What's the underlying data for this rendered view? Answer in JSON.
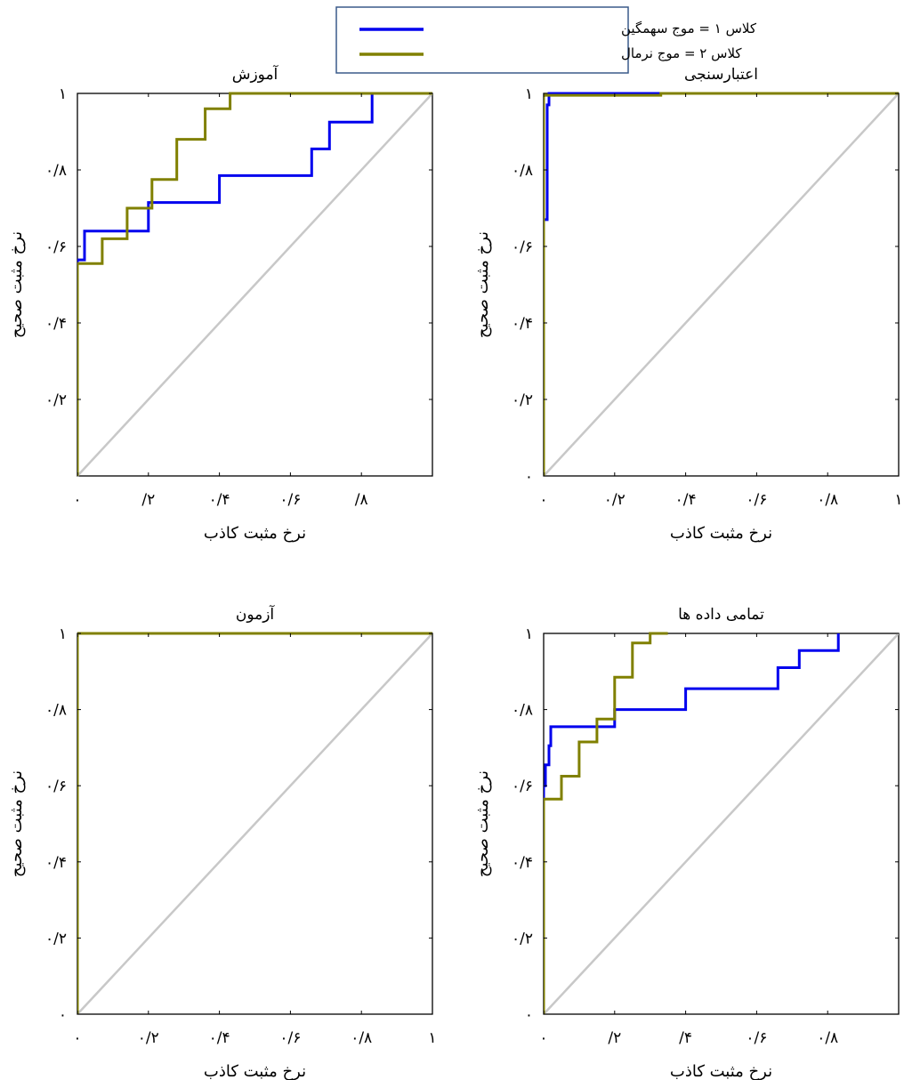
{
  "legend": {
    "entries": [
      {
        "label": "کلاس ۱ = موج سهمگین",
        "color": "#0000ee"
      },
      {
        "label": "کلاس ۲ = موج نرمال",
        "color": "#808000"
      }
    ]
  },
  "chart_data": [
    {
      "type": "line",
      "title": "آموزش",
      "xlabel": "نرخ مثبت کاذب",
      "ylabel": "نرخ مثبت صحیح",
      "xlim": [
        0,
        1
      ],
      "ylim": [
        0,
        1
      ],
      "xtick_values": [
        0,
        0.2,
        0.4,
        0.6,
        0.8
      ],
      "xtick_labels": [
        "۰",
        "/۲",
        "۰/۴",
        "۰/۶",
        "/۸"
      ],
      "ytick_values": [
        0.2,
        0.4,
        0.6,
        0.8,
        1
      ],
      "ytick_labels": [
        "۰/۲",
        "۰/۴",
        "۰/۶",
        "۰/۸",
        "۱"
      ],
      "grid": false,
      "series": [
        {
          "color": "#0000ee",
          "x": [
            0,
            0,
            0.02,
            0.02,
            0.2,
            0.2,
            0.4,
            0.4,
            0.66,
            0.66,
            0.71,
            0.71,
            0.83,
            0.83,
            1
          ],
          "y": [
            0,
            0.565,
            0.565,
            0.64,
            0.64,
            0.715,
            0.715,
            0.785,
            0.785,
            0.855,
            0.855,
            0.925,
            0.925,
            1,
            1
          ]
        },
        {
          "color": "#808000",
          "x": [
            0,
            0,
            0.07,
            0.07,
            0.14,
            0.14,
            0.21,
            0.21,
            0.28,
            0.28,
            0.36,
            0.36,
            0.43,
            0.43,
            1
          ],
          "y": [
            0,
            0.555,
            0.555,
            0.62,
            0.62,
            0.7,
            0.7,
            0.775,
            0.775,
            0.88,
            0.88,
            0.96,
            0.96,
            1,
            1
          ]
        },
        {
          "color": "#c8c8c8",
          "x": [
            0,
            1
          ],
          "y": [
            0,
            1
          ]
        }
      ]
    },
    {
      "type": "line",
      "title": "اعتبارسنجی",
      "xlabel": "نرخ مثبت کاذب",
      "ylabel": "نرخ مثبت صحیح",
      "xlim": [
        0,
        1
      ],
      "ylim": [
        0,
        1
      ],
      "xtick_values": [
        0,
        0.2,
        0.4,
        0.6,
        0.8,
        1
      ],
      "xtick_labels": [
        "۰",
        "۰/۲",
        "۰/۴",
        "۰/۶",
        "۰/۸",
        "۱"
      ],
      "ytick_values": [
        0,
        0.2,
        0.4,
        0.6,
        0.8,
        1
      ],
      "ytick_labels": [
        "۰",
        "۰/۲",
        "۰/۴",
        "۰/۶",
        "۰/۸",
        "۱"
      ],
      "grid": false,
      "series": [
        {
          "color": "#0000ee",
          "x": [
            0,
            0,
            0.01,
            0.01,
            0.015,
            0.015,
            1
          ],
          "y": [
            0,
            0.67,
            0.67,
            0.97,
            0.97,
            1,
            1
          ]
        },
        {
          "color": "#808000",
          "x": [
            0,
            0,
            0.33,
            0.33,
            1
          ],
          "y": [
            0,
            0.995,
            0.995,
            1,
            1
          ]
        },
        {
          "color": "#c8c8c8",
          "x": [
            0,
            1
          ],
          "y": [
            0,
            1
          ]
        }
      ]
    },
    {
      "type": "line",
      "title": "آزمون",
      "xlabel": "نرخ مثبت کاذب",
      "ylabel": "نرخ مثبت صحیح",
      "xlim": [
        0,
        1
      ],
      "ylim": [
        0,
        1
      ],
      "xtick_values": [
        0,
        0.2,
        0.4,
        0.6,
        0.8,
        1
      ],
      "xtick_labels": [
        "۰",
        "۰/۲",
        "۰/۴",
        "۰/۶",
        "۰/۸",
        "۱"
      ],
      "ytick_values": [
        0,
        0.2,
        0.4,
        0.6,
        0.8,
        1
      ],
      "ytick_labels": [
        "۰",
        "۰/۲",
        "۰/۴",
        "۰/۶",
        "۰/۸",
        "۱"
      ],
      "grid": false,
      "series": [
        {
          "color": "#0000ee",
          "x": [
            0,
            0,
            1
          ],
          "y": [
            0,
            1,
            1
          ]
        },
        {
          "color": "#808000",
          "x": [
            0,
            0,
            1
          ],
          "y": [
            0,
            1,
            1
          ]
        },
        {
          "color": "#c8c8c8",
          "x": [
            0,
            1
          ],
          "y": [
            0,
            1
          ]
        }
      ]
    },
    {
      "type": "line",
      "title": "تمامی داده ها",
      "xlabel": "نرخ مثبت کاذب",
      "ylabel": "نرخ مثبت صحیح",
      "xlim": [
        0,
        1
      ],
      "ylim": [
        0,
        1
      ],
      "xtick_values": [
        0,
        0.2,
        0.4,
        0.6,
        0.8
      ],
      "xtick_labels": [
        "۰",
        "/۲",
        "/۴",
        "۰/۶",
        "۰/۸"
      ],
      "ytick_values": [
        0,
        0.2,
        0.4,
        0.6,
        0.8,
        1
      ],
      "ytick_labels": [
        "۰",
        "۰/۲",
        "۰/۴",
        "۰/۶",
        "۰/۸",
        "۱"
      ],
      "grid": false,
      "series": [
        {
          "color": "#0000ee",
          "x": [
            0,
            0,
            0.005,
            0.005,
            0.015,
            0.015,
            0.02,
            0.02,
            0.2,
            0.2,
            0.4,
            0.4,
            0.66,
            0.66,
            0.72,
            0.72,
            0.83,
            0.83
          ],
          "y": [
            0,
            0.6,
            0.6,
            0.655,
            0.655,
            0.705,
            0.705,
            0.755,
            0.755,
            0.8,
            0.8,
            0.855,
            0.855,
            0.91,
            0.91,
            0.955,
            0.955,
            1
          ]
        },
        {
          "color": "#808000",
          "x": [
            0,
            0,
            0.05,
            0.05,
            0.1,
            0.1,
            0.15,
            0.15,
            0.2,
            0.2,
            0.25,
            0.25,
            0.3,
            0.3,
            0.35
          ],
          "y": [
            0,
            0.565,
            0.565,
            0.625,
            0.625,
            0.715,
            0.715,
            0.775,
            0.775,
            0.885,
            0.885,
            0.975,
            0.975,
            1,
            1
          ]
        },
        {
          "color": "#c8c8c8",
          "x": [
            0,
            1
          ],
          "y": [
            0,
            1
          ]
        }
      ]
    }
  ]
}
